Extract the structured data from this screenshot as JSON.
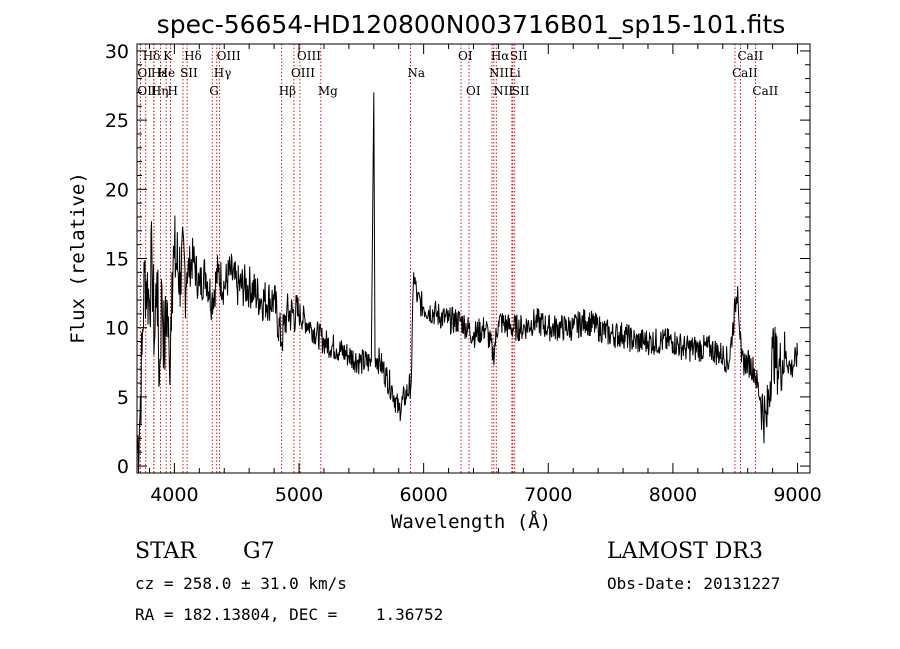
{
  "chart_data": {
    "type": "line",
    "title": "spec-56654-HD120800N003716B01_sp15-101.fits",
    "xlabel": "Wavelength (Å)",
    "ylabel": "Flux (relative)",
    "xlim": [
      3700,
      9100
    ],
    "ylim": [
      -0.5,
      30.5
    ],
    "xticks": [
      4000,
      5000,
      6000,
      7000,
      8000,
      9000
    ],
    "yticks": [
      0,
      5,
      10,
      15,
      20,
      25,
      30
    ],
    "xtick_labels": [
      "4000",
      "5000",
      "6000",
      "7000",
      "8000",
      "9000"
    ],
    "ytick_labels": [
      "0",
      "5",
      "10",
      "15",
      "20",
      "25",
      "30"
    ],
    "series": [
      {
        "name": "flux",
        "x": [
          3700,
          3720,
          3740,
          3760,
          3780,
          3800,
          3820,
          3840,
          3860,
          3880,
          3900,
          3920,
          3940,
          3960,
          3980,
          4000,
          4050,
          4100,
          4150,
          4200,
          4250,
          4300,
          4350,
          4400,
          4450,
          4500,
          4600,
          4700,
          4800,
          4860,
          4900,
          5000,
          5100,
          5200,
          5300,
          5400,
          5500,
          5580,
          5600,
          5610,
          5650,
          5700,
          5750,
          5800,
          5850,
          5900,
          5920,
          5950,
          6000,
          6100,
          6200,
          6300,
          6400,
          6500,
          6560,
          6600,
          6700,
          6800,
          6900,
          7000,
          7100,
          7200,
          7300,
          7400,
          7500,
          7600,
          7700,
          7800,
          7900,
          8000,
          8100,
          8200,
          8300,
          8400,
          8450,
          8500,
          8520,
          8550,
          8600,
          8650,
          8700,
          8750,
          8800,
          8850,
          8900,
          8950,
          9000
        ],
        "y": [
          1,
          3,
          8,
          14,
          13,
          12,
          15,
          9,
          14,
          6,
          13,
          8,
          12,
          7,
          14,
          15,
          14,
          14,
          15,
          13,
          14,
          12,
          14,
          13,
          14,
          13,
          13,
          12,
          12,
          9,
          11,
          11,
          10,
          9,
          8.5,
          8,
          7.5,
          7.5,
          27,
          8,
          7.5,
          6.5,
          5.5,
          4,
          5,
          6,
          14,
          12,
          11.5,
          11,
          10.5,
          10.5,
          9.5,
          10,
          8,
          10.5,
          10,
          10,
          10.5,
          10,
          10,
          10,
          10.5,
          10,
          9.5,
          9.5,
          9,
          9,
          9,
          9,
          8.5,
          8.5,
          8.5,
          8,
          7.5,
          11.5,
          13,
          7.5,
          7.5,
          7,
          5,
          3,
          8.5,
          7,
          8,
          7,
          8
        ]
      }
    ],
    "line_markers": [
      {
        "label": "Hδ",
        "wavelength": 3770,
        "row": 0
      },
      {
        "label": "OI",
        "wavelength": 3727,
        "row": 1
      },
      {
        "label": "OII",
        "wavelength": 3727,
        "row": 2
      },
      {
        "label": "Hε",
        "wavelength": 3835,
        "row": 1
      },
      {
        "label": "Hη",
        "wavelength": 3835,
        "row": 2
      },
      {
        "label": "K",
        "wavelength": 3934,
        "row": 0
      },
      {
        "label": "He",
        "wavelength": 3889,
        "row": 1
      },
      {
        "label": "H",
        "wavelength": 3969,
        "row": 2
      },
      {
        "label": "Hδ",
        "wavelength": 4102,
        "row": 0
      },
      {
        "label": "SII",
        "wavelength": 4069,
        "row": 1
      },
      {
        "label": "OIII",
        "wavelength": 4363,
        "row": 0
      },
      {
        "label": "Hγ",
        "wavelength": 4340,
        "row": 1
      },
      {
        "label": "G",
        "wavelength": 4304,
        "row": 2
      },
      {
        "label": "Hβ",
        "wavelength": 4861,
        "row": 2
      },
      {
        "label": "OIII",
        "wavelength": 5007,
        "row": 0
      },
      {
        "label": "OIII",
        "wavelength": 4959,
        "row": 1
      },
      {
        "label": "Mg",
        "wavelength": 5175,
        "row": 2
      },
      {
        "label": "Na",
        "wavelength": 5894,
        "row": 1
      },
      {
        "label": "OI",
        "wavelength": 6300,
        "row": 0
      },
      {
        "label": "OI",
        "wavelength": 6364,
        "row": 2
      },
      {
        "label": "Hα",
        "wavelength": 6563,
        "row": 0
      },
      {
        "label": "SII",
        "wavelength": 6716,
        "row": 0
      },
      {
        "label": "NII",
        "wavelength": 6548,
        "row": 1
      },
      {
        "label": "Li",
        "wavelength": 6708,
        "row": 1
      },
      {
        "label": "NII",
        "wavelength": 6583,
        "row": 2
      },
      {
        "label": "SII",
        "wavelength": 6731,
        "row": 2
      },
      {
        "label": "CaII",
        "wavelength": 8542,
        "row": 0
      },
      {
        "label": "CaII",
        "wavelength": 8498,
        "row": 1
      },
      {
        "label": "CaII",
        "wavelength": 8662,
        "row": 2
      }
    ],
    "colors": {
      "spectrum": "#000000",
      "markers": "#d00000"
    }
  },
  "info": {
    "class": "STAR",
    "subclass": "G7",
    "survey": "LAMOST DR3",
    "cz": "cz = 258.0 ± 31.0 km/s",
    "obs_date": "Obs-Date: 20131227",
    "radec": "RA = 182.13804, DEC =    1.36752"
  }
}
